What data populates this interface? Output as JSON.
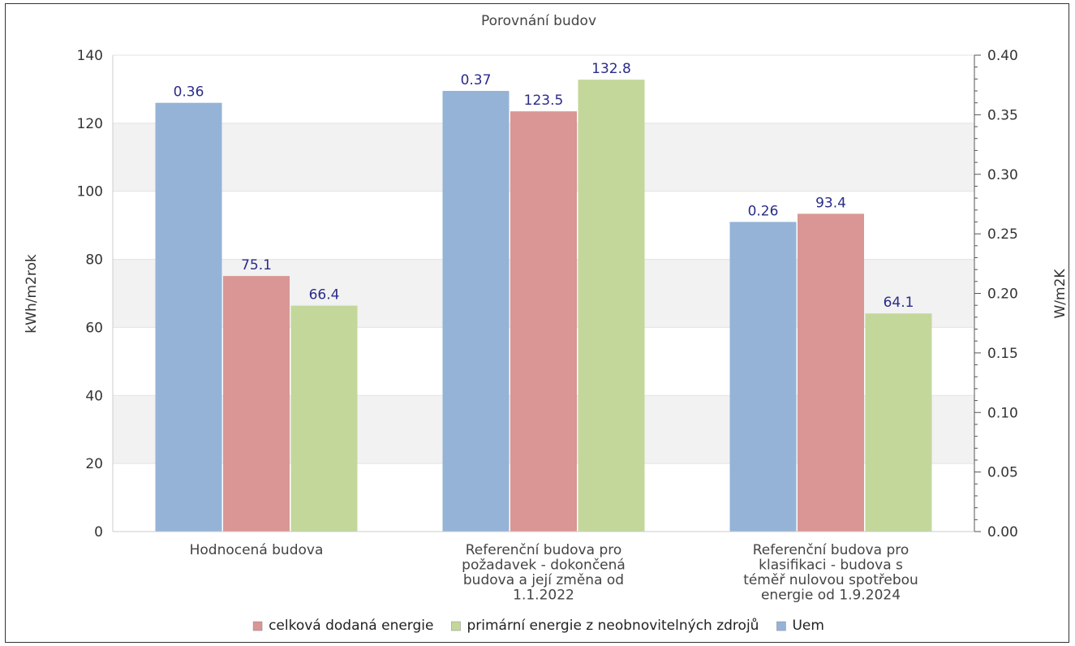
{
  "chart_data": {
    "type": "bar",
    "title": "Porovnání budov",
    "categories": [
      [
        "Hodnocená budova"
      ],
      [
        "Referenční budova pro",
        "požadavek - dokončená",
        "budova a její změna od",
        "1.1.2022"
      ],
      [
        "Referenční budova pro",
        "klasifikaci - budova s",
        "téměř nulovou spotřebou",
        "energie od 1.9.2024"
      ]
    ],
    "left_axis": {
      "label": "kWh/m2rok",
      "range": [
        0,
        140
      ],
      "ticks": [
        "0",
        "20",
        "40",
        "60",
        "80",
        "100",
        "120",
        "140"
      ]
    },
    "right_axis": {
      "label": "W/m2K",
      "range": [
        0,
        0.4
      ],
      "ticks": [
        "0.00",
        "0.05",
        "0.10",
        "0.15",
        "0.20",
        "0.25",
        "0.30",
        "0.35",
        "0.40"
      ]
    },
    "series": [
      {
        "name": "Uem",
        "axis": "right",
        "color": "#95b3d7",
        "values": [
          0.36,
          0.37,
          0.26
        ],
        "labels": [
          "0.36",
          "0.37",
          "0.26"
        ]
      },
      {
        "name": "celková dodaná energie",
        "axis": "left",
        "color": "#d99694",
        "values": [
          75.1,
          123.5,
          93.4
        ],
        "labels": [
          "75.1",
          "123.5",
          "93.4"
        ]
      },
      {
        "name": "primární energie z neobnovitelných zdrojů",
        "axis": "left",
        "color": "#c4d79b",
        "values": [
          66.4,
          132.8,
          64.1
        ],
        "labels": [
          "66.4",
          "132.8",
          "64.1"
        ]
      }
    ],
    "legend": {
      "placement": "bottom",
      "order": [
        "celková dodaná energie",
        "primární energie z neobnovitelných zdrojů",
        "Uem"
      ]
    },
    "grid": true,
    "band_color": "#f2f2f2"
  }
}
